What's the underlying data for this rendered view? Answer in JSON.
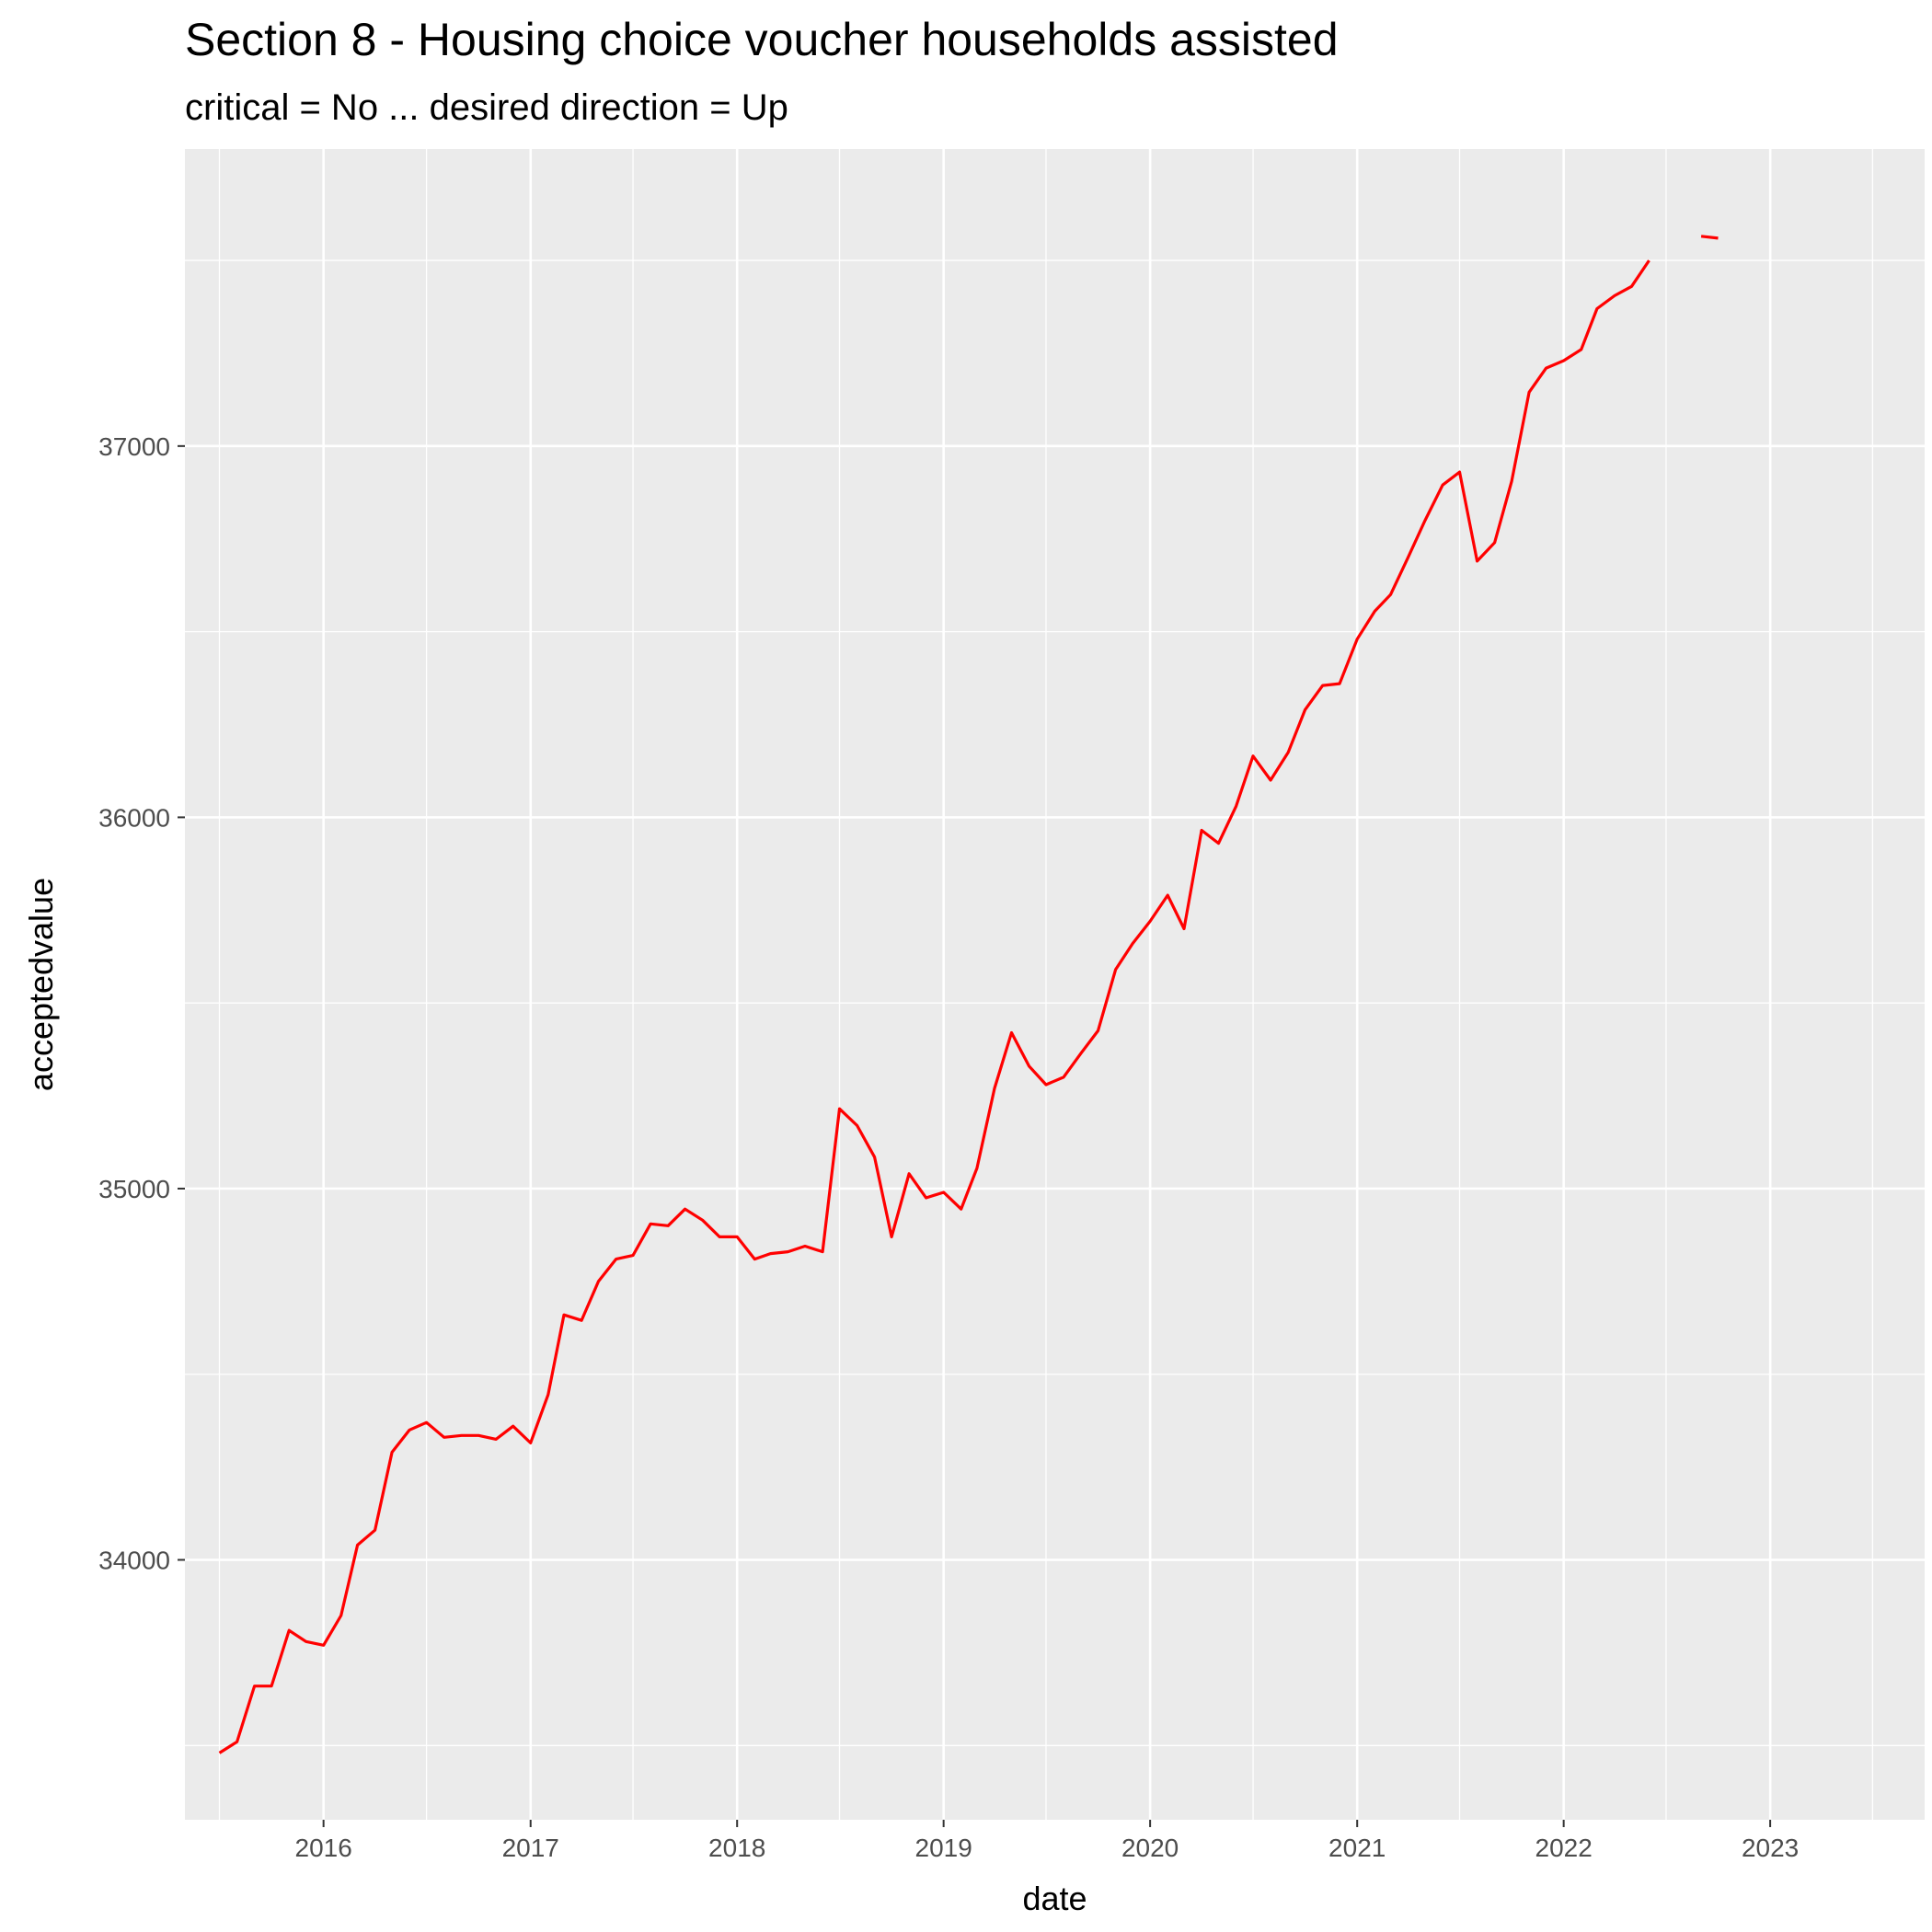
{
  "chart_data": {
    "type": "line",
    "title": "Section 8 - Housing choice voucher households assisted",
    "subtitle": "critical = No ... desired direction = Up",
    "xlabel": "date",
    "ylabel": "acceptedvalue",
    "x_ticks": [
      "2016",
      "2017",
      "2018",
      "2019",
      "2020",
      "2021",
      "2022",
      "2023"
    ],
    "y_ticks": [
      34000,
      35000,
      36000,
      37000
    ],
    "xlim": [
      "2015-05-01",
      "2023-10-01"
    ],
    "ylim": [
      33300,
      37800
    ],
    "grid": true,
    "legend": "none",
    "line_color": "#ff0000",
    "panel_color": "#ebebeb",
    "series": [
      {
        "dates": [
          "2015-07-01",
          "2015-08-01",
          "2015-09-01",
          "2015-10-01",
          "2015-11-01",
          "2015-12-01",
          "2016-01-01",
          "2016-02-01",
          "2016-03-01",
          "2016-04-01",
          "2016-05-01",
          "2016-06-01",
          "2016-07-01",
          "2016-08-01",
          "2016-09-01",
          "2016-10-01",
          "2016-11-01",
          "2016-12-01",
          "2017-01-01",
          "2017-02-01",
          "2017-03-01",
          "2017-04-01",
          "2017-05-01",
          "2017-06-01",
          "2017-07-01",
          "2017-08-01",
          "2017-09-01",
          "2017-10-01",
          "2017-11-01",
          "2017-12-01",
          "2018-01-01",
          "2018-02-01",
          "2018-03-01",
          "2018-04-01",
          "2018-05-01",
          "2018-06-01",
          "2018-07-01",
          "2018-08-01",
          "2018-09-01",
          "2018-10-01",
          "2018-11-01",
          "2018-12-01",
          "2019-01-01",
          "2019-02-01",
          "2019-03-01",
          "2019-04-01",
          "2019-05-01",
          "2019-06-01",
          "2019-07-01",
          "2019-08-01",
          "2019-09-01",
          "2019-10-01",
          "2019-11-01",
          "2019-12-01",
          "2020-01-01",
          "2020-02-01",
          "2020-03-01",
          "2020-04-01",
          "2020-05-01",
          "2020-06-01",
          "2020-07-01",
          "2020-08-01",
          "2020-09-01",
          "2020-10-01",
          "2020-11-01",
          "2020-12-01",
          "2021-01-01",
          "2021-02-01",
          "2021-03-01",
          "2021-04-01",
          "2021-05-01",
          "2021-06-01",
          "2021-07-01",
          "2021-08-01",
          "2021-09-01",
          "2021-10-01",
          "2021-11-01",
          "2021-12-01",
          "2022-01-01",
          "2022-02-01",
          "2022-03-01",
          "2022-04-01",
          "2022-05-01",
          "2022-06-01"
        ],
        "values": [
          33480,
          33510,
          33660,
          33660,
          33810,
          33780,
          33770,
          33850,
          34040,
          34080,
          34290,
          34350,
          34370,
          34330,
          34335,
          34335,
          34325,
          34360,
          34315,
          34445,
          34660,
          34645,
          34750,
          34810,
          34820,
          34905,
          34900,
          34945,
          34915,
          34870,
          34870,
          34810,
          34825,
          34830,
          34845,
          34830,
          35215,
          35170,
          35085,
          34870,
          35040,
          34975,
          34990,
          34945,
          35055,
          35270,
          35420,
          35330,
          35280,
          35300,
          35365,
          35425,
          35590,
          35660,
          35720,
          35790,
          35700,
          35965,
          35930,
          36030,
          36165,
          36100,
          36175,
          36290,
          36355,
          36360,
          36480,
          36555,
          36600,
          36700,
          36800,
          36895,
          36930,
          36690,
          36740,
          36905,
          37145,
          37210,
          37230,
          37260,
          37370,
          37405,
          37430,
          37500
        ]
      },
      {
        "dates": [
          "2022-09-01",
          "2022-10-01"
        ],
        "values": [
          37565,
          37560
        ]
      }
    ]
  }
}
